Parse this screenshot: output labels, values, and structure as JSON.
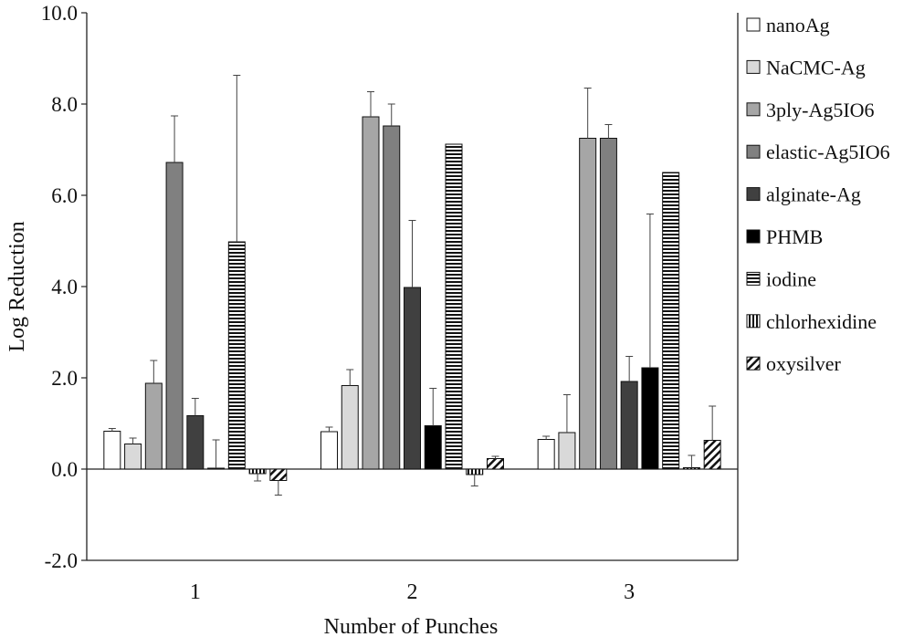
{
  "chart_data": {
    "type": "bar",
    "title": "",
    "xlabel": "Number of Punches",
    "ylabel": "Log Reduction",
    "ylim": [
      -2.0,
      10.0
    ],
    "ytick_values": [
      -2.0,
      0.0,
      2.0,
      4.0,
      6.0,
      8.0,
      10.0
    ],
    "ytick_labels": [
      "-2.0",
      "0.0",
      "2.0",
      "4.0",
      "6.0",
      "8.0",
      "10.0"
    ],
    "grid": false,
    "legend_position": "right",
    "categories": [
      "1",
      "2",
      "3"
    ],
    "series": [
      {
        "name": "nanoAg",
        "values": [
          0.83,
          0.82,
          0.65
        ],
        "errors": [
          0.06,
          0.1,
          0.07
        ],
        "fill": "#ffffff",
        "pattern": "solid"
      },
      {
        "name": "NaCMC-Ag",
        "values": [
          0.55,
          1.83,
          0.8
        ],
        "errors": [
          0.13,
          0.35,
          0.83
        ],
        "fill": "#d9d9d9",
        "pattern": "solid"
      },
      {
        "name": "3ply-Ag5IO6",
        "values": [
          1.88,
          7.72,
          7.25
        ],
        "errors": [
          0.5,
          0.55,
          1.1
        ],
        "fill": "#a6a6a6",
        "pattern": "solid"
      },
      {
        "name": "elastic-Ag5IO6",
        "values": [
          6.72,
          7.52,
          7.25
        ],
        "errors": [
          1.02,
          0.48,
          0.3
        ],
        "fill": "#808080",
        "pattern": "solid"
      },
      {
        "name": "alginate-Ag",
        "values": [
          1.17,
          3.98,
          1.92
        ],
        "errors": [
          0.38,
          1.47,
          0.55
        ],
        "fill": "#404040",
        "pattern": "solid"
      },
      {
        "name": "PHMB",
        "values": [
          0.02,
          0.95,
          2.22
        ],
        "errors": [
          0.62,
          0.82,
          3.37
        ],
        "fill": "#000000",
        "pattern": "solid"
      },
      {
        "name": "iodine",
        "values": [
          4.98,
          7.12,
          6.5
        ],
        "errors": [
          3.65,
          0.0,
          0.0
        ],
        "fill": "#ffffff",
        "pattern": "hstripe"
      },
      {
        "name": "chlorhexidine",
        "values": [
          -0.1,
          -0.12,
          0.03
        ],
        "errors": [
          0.16,
          0.25,
          0.27
        ],
        "fill": "#ffffff",
        "pattern": "vstripe"
      },
      {
        "name": "oxysilver",
        "values": [
          -0.25,
          0.23,
          0.63
        ],
        "errors": [
          0.32,
          0.05,
          0.75
        ],
        "fill": "#ffffff",
        "pattern": "diag"
      }
    ]
  }
}
